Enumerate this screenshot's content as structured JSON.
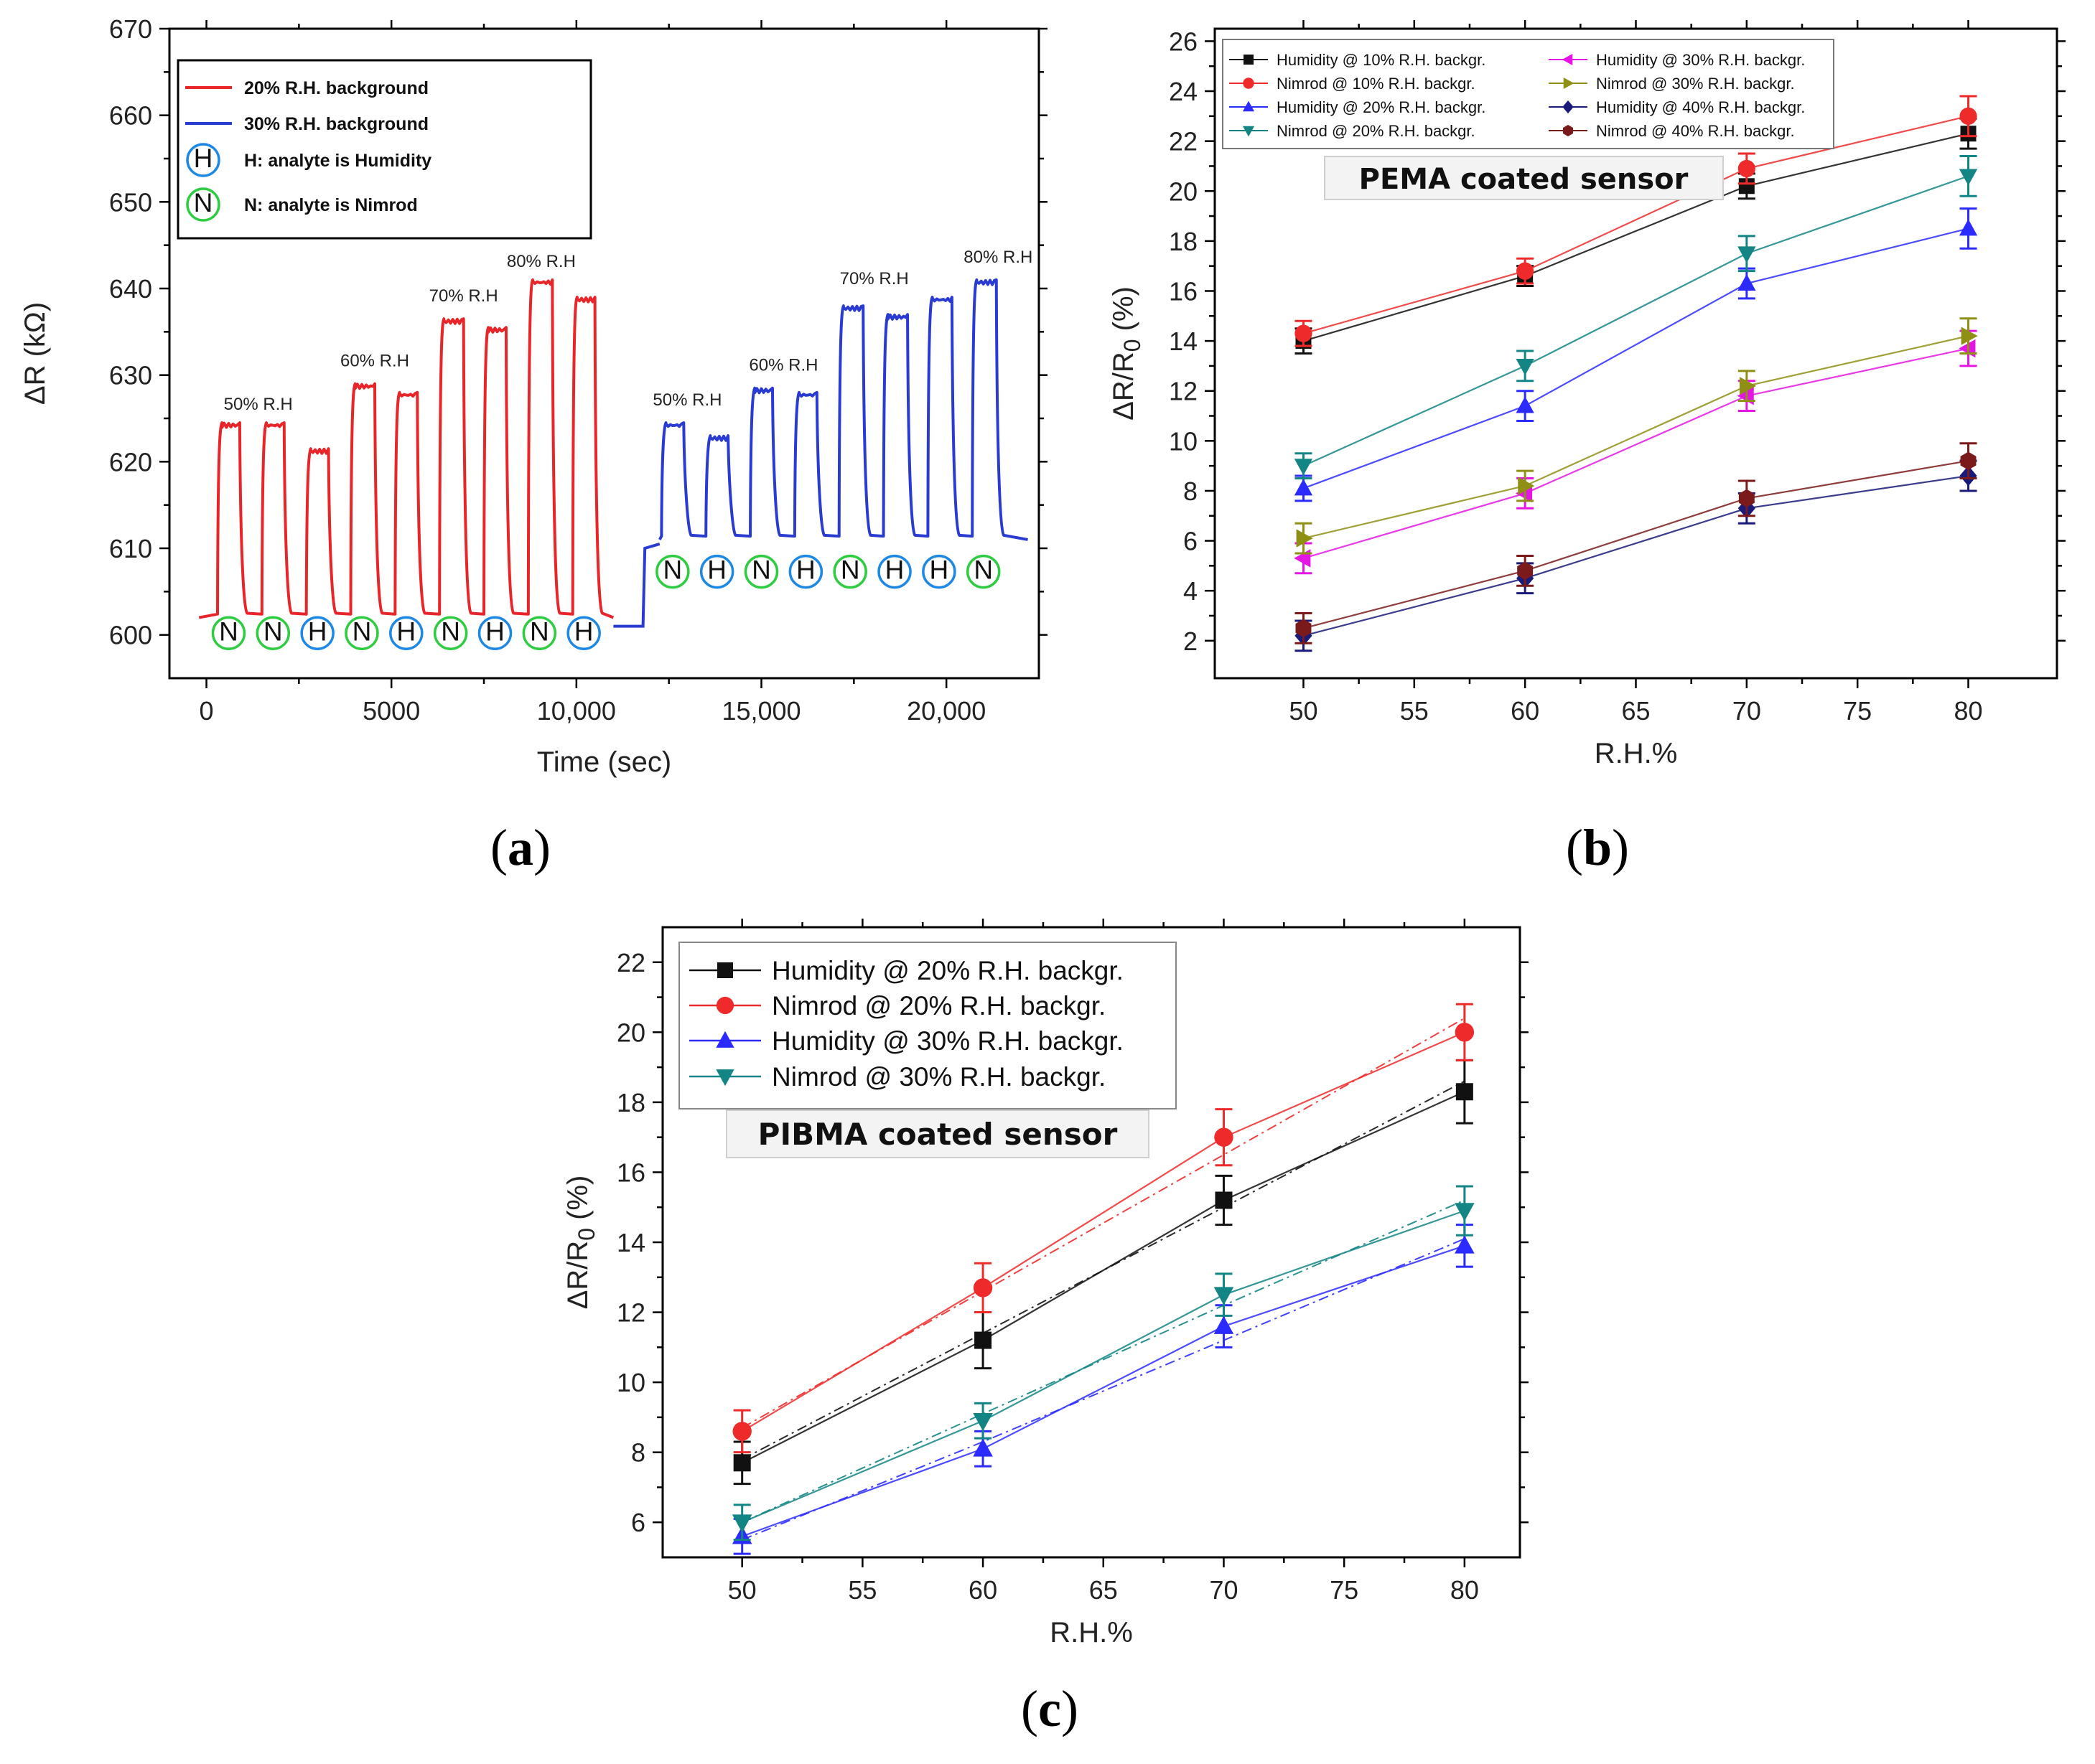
{
  "colors": {
    "red": "#e8262a",
    "blue": "#2a3bd1",
    "humidity_circle": "#1e88e5",
    "nimrod_circle": "#2ecc40",
    "black": "#111111",
    "mid_red": "#ee2a2a",
    "light_blue": "#2b2bff",
    "teal": "#138585",
    "magenta": "#e516e5",
    "olive": "#8f8f15",
    "navy": "#1a1a7a",
    "brown": "#7a1a1a"
  },
  "chart_data": [
    {
      "type": "line",
      "panel_label": "a",
      "title": "",
      "xlabel": "Time (sec)",
      "ylabel": "ΔR (kΩ)",
      "xlim": [
        -1000,
        22500
      ],
      "ylim": [
        595,
        670
      ],
      "xticks": [
        "0",
        "5000",
        "10,000",
        "15,000",
        "20,000"
      ],
      "xtick_values": [
        0,
        5000,
        10000,
        15000,
        20000
      ],
      "yticks": [
        "600",
        "610",
        "620",
        "630",
        "640",
        "650",
        "660",
        "670"
      ],
      "legend": {
        "position": "top-left",
        "entries": [
          {
            "kind": "line",
            "color": "red",
            "label": "20% R.H. background"
          },
          {
            "kind": "line",
            "color": "blue",
            "label": "30% R.H. background"
          },
          {
            "kind": "circle",
            "letter": "H",
            "color": "humidity_circle",
            "label": "H: analyte is Humidity"
          },
          {
            "kind": "circle",
            "letter": "N",
            "color": "nimrod_circle",
            "label": "N: analyte is Nimrod"
          }
        ]
      },
      "series": [
        {
          "name": "20% R.H. background",
          "color": "red",
          "baseline": 602,
          "pulses": [
            [
              300,
              900,
              624.5
            ],
            [
              1500,
              2100,
              624.5
            ],
            [
              2700,
              3300,
              621.5
            ],
            [
              3900,
              4550,
              629
            ],
            [
              5100,
              5700,
              628
            ],
            [
              6300,
              6950,
              636.5
            ],
            [
              7500,
              8100,
              635.5
            ],
            [
              8700,
              9350,
              641
            ],
            [
              9900,
              10500,
              639
            ]
          ],
          "x_end": 11000
        },
        {
          "name": "30% R.H. background",
          "color": "blue",
          "baseline": 611,
          "pulses": [
            [
              12300,
              12900,
              624.5
            ],
            [
              13500,
              14100,
              623
            ],
            [
              14700,
              15300,
              628.5
            ],
            [
              15900,
              16500,
              628
            ],
            [
              17100,
              17750,
              638
            ],
            [
              18300,
              18950,
              637
            ],
            [
              19500,
              20150,
              639
            ],
            [
              20700,
              21350,
              641
            ]
          ],
          "x_start": 11000,
          "x_end": 22200
        }
      ],
      "rh_labels": [
        {
          "x": 1400,
          "y": 626,
          "text": "50% R.H"
        },
        {
          "x": 4550,
          "y": 631,
          "text": "60% R.H"
        },
        {
          "x": 6950,
          "y": 638.5,
          "text": "70% R.H"
        },
        {
          "x": 9050,
          "y": 642.5,
          "text": "80% R.H"
        },
        {
          "x": 13000,
          "y": 626.5,
          "text": "50% R.H"
        },
        {
          "x": 15600,
          "y": 630.5,
          "text": "60% R.H"
        },
        {
          "x": 18050,
          "y": 640.5,
          "text": "70% R.H"
        },
        {
          "x": 21400,
          "y": 643,
          "text": "80% R.H"
        }
      ],
      "markers_20": [
        "N",
        "N",
        "H",
        "N",
        "H",
        "N",
        "H",
        "N",
        "H"
      ],
      "markers_20_x": [
        600,
        1800,
        3000,
        4200,
        5400,
        6600,
        7800,
        9000,
        10200
      ],
      "markers_30": [
        "N",
        "H",
        "N",
        "H",
        "N",
        "H",
        "H",
        "N"
      ],
      "markers_30_x": [
        12600,
        13800,
        15000,
        16200,
        17400,
        18600,
        19800,
        21000
      ]
    },
    {
      "type": "line",
      "panel_label": "b",
      "title": "PEMA coated sensor",
      "xlabel": "R.H.%",
      "ylabel": "ΔR/R0 (%)",
      "xlim": [
        46,
        84
      ],
      "ylim": [
        0.5,
        26.5
      ],
      "xticks": [
        50,
        55,
        60,
        65,
        70,
        75,
        80
      ],
      "yticks": [
        2,
        4,
        6,
        8,
        10,
        12,
        14,
        16,
        18,
        20,
        22,
        24,
        26
      ],
      "x": [
        50,
        60,
        70,
        80
      ],
      "legend": {
        "position": "top",
        "columns": 2
      },
      "series": [
        {
          "name": "Humidity @ 10% R.H. backgr.",
          "color": "black",
          "marker": "square",
          "values": [
            14.0,
            16.6,
            20.2,
            22.3
          ],
          "err": [
            0.5,
            0.4,
            0.5,
            0.6
          ]
        },
        {
          "name": "Nimrod @ 10% R.H. backgr.",
          "color": "mid_red",
          "marker": "circle",
          "values": [
            14.3,
            16.8,
            20.9,
            23.0
          ],
          "err": [
            0.5,
            0.5,
            0.6,
            0.8
          ]
        },
        {
          "name": "Humidity @ 20% R.H. backgr.",
          "color": "light_blue",
          "marker": "triangle-up",
          "values": [
            8.1,
            11.4,
            16.3,
            18.5
          ],
          "err": [
            0.5,
            0.6,
            0.6,
            0.8
          ]
        },
        {
          "name": "Nimrod @ 20% R.H. backgr.",
          "color": "teal",
          "marker": "triangle-down",
          "values": [
            9.0,
            13.0,
            17.5,
            20.6
          ],
          "err": [
            0.5,
            0.6,
            0.7,
            0.8
          ]
        },
        {
          "name": "Humidity @ 30% R.H. backgr.",
          "color": "magenta",
          "marker": "triangle-left",
          "values": [
            5.3,
            7.9,
            11.8,
            13.7
          ],
          "err": [
            0.6,
            0.6,
            0.6,
            0.7
          ]
        },
        {
          "name": "Nimrod @ 30% R.H. backgr.",
          "color": "olive",
          "marker": "triangle-right",
          "values": [
            6.1,
            8.2,
            12.2,
            14.2
          ],
          "err": [
            0.6,
            0.6,
            0.6,
            0.7
          ]
        },
        {
          "name": "Humidity @ 40% R.H. backgr.",
          "color": "navy",
          "marker": "diamond",
          "values": [
            2.2,
            4.5,
            7.3,
            8.6
          ],
          "err": [
            0.6,
            0.6,
            0.6,
            0.6
          ]
        },
        {
          "name": "Nimrod @ 40% R.H. backgr.",
          "color": "brown",
          "marker": "hexagon",
          "values": [
            2.5,
            4.8,
            7.7,
            9.2
          ],
          "err": [
            0.6,
            0.6,
            0.7,
            0.7
          ]
        }
      ]
    },
    {
      "type": "line",
      "panel_label": "c",
      "title": "PIBMA coated sensor",
      "xlabel": "R.H.%",
      "ylabel": "ΔR/R0 (%)",
      "xlim": [
        46.7,
        82.3
      ],
      "ylim": [
        5.0,
        23.0
      ],
      "xticks": [
        50,
        55,
        60,
        65,
        70,
        75,
        80
      ],
      "yticks": [
        6,
        8,
        10,
        12,
        14,
        16,
        18,
        20,
        22
      ],
      "x": [
        50,
        60,
        70,
        80
      ],
      "legend": {
        "position": "top-left"
      },
      "series": [
        {
          "name": "Humidity @ 20% R.H. backgr.",
          "color": "black",
          "marker": "square",
          "values": [
            7.7,
            11.2,
            15.2,
            18.3
          ],
          "err": [
            0.6,
            0.8,
            0.7,
            0.9
          ],
          "fit": [
            7.8,
            11.4,
            15.0,
            18.6
          ]
        },
        {
          "name": "Nimrod @ 20% R.H. backgr.",
          "color": "mid_red",
          "marker": "circle",
          "values": [
            8.6,
            12.7,
            17.0,
            20.0
          ],
          "err": [
            0.6,
            0.7,
            0.8,
            0.8
          ],
          "fit": [
            8.7,
            12.6,
            16.5,
            20.4
          ]
        },
        {
          "name": "Humidity @ 30% R.H. backgr.",
          "color": "light_blue",
          "marker": "triangle-up",
          "values": [
            5.6,
            8.1,
            11.6,
            13.9
          ],
          "err": [
            0.5,
            0.5,
            0.6,
            0.6
          ],
          "fit": [
            5.5,
            8.3,
            11.2,
            14.1
          ]
        },
        {
          "name": "Nimrod @ 30% R.H. backgr.",
          "color": "teal",
          "marker": "triangle-down",
          "values": [
            6.0,
            8.9,
            12.5,
            14.9
          ],
          "err": [
            0.5,
            0.5,
            0.6,
            0.7
          ],
          "fit": [
            6.0,
            9.1,
            12.2,
            15.2
          ]
        }
      ]
    }
  ]
}
